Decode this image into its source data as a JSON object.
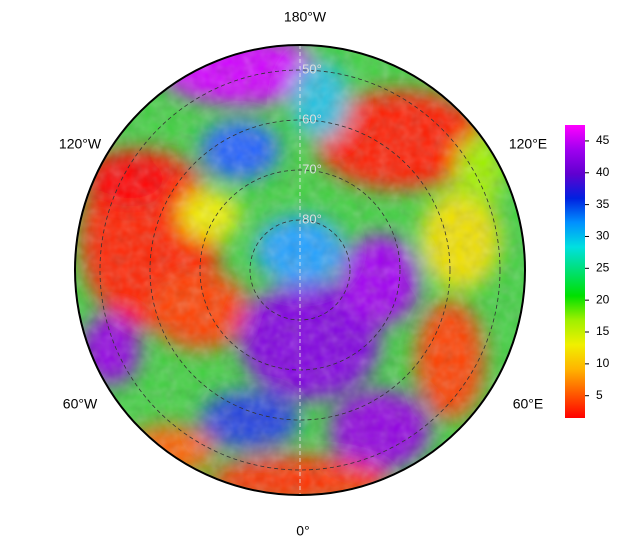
{
  "map": {
    "longitude_labels": {
      "top": "180°W",
      "upper_left": "120°W",
      "upper_right": "120°E",
      "lower_left": "60°W",
      "lower_right": "60°E",
      "bottom": "0°"
    },
    "latitude_circles": [
      {
        "value": 80,
        "label": "80°"
      },
      {
        "value": 70,
        "label": "70°"
      },
      {
        "value": 60,
        "label": "60°"
      },
      {
        "value": 50,
        "label": "50°"
      }
    ],
    "rlim": [
      90,
      45
    ],
    "colorbar": {
      "lim": [
        1.5,
        47.5
      ],
      "ticks": [
        5,
        10,
        15,
        20,
        25,
        30,
        35,
        40,
        45
      ],
      "colormap": [
        "#ff0000",
        "#ff5a00",
        "#ffb400",
        "#f0f000",
        "#a0f000",
        "#00e000",
        "#00e070",
        "#00e0e0",
        "#0090ff",
        "#0020e0",
        "#6000d0",
        "#a000f0",
        "#ff00ff"
      ]
    }
  }
}
